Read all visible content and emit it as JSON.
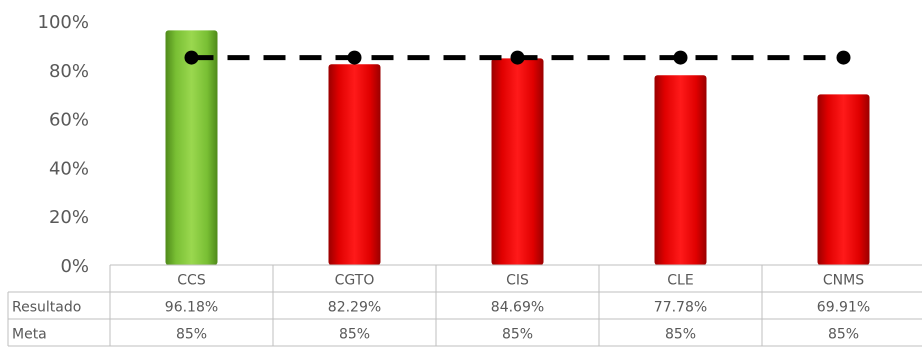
{
  "chart_data": {
    "type": "bar",
    "categories": [
      "CCS",
      "CGTO",
      "CIS",
      "CLE",
      "CNMS"
    ],
    "series": [
      {
        "name": "Resultado",
        "values": [
          96.18,
          82.29,
          84.69,
          77.78,
          69.91
        ],
        "labels": [
          "96.18%",
          "82.29%",
          "84.69%",
          "77.78%",
          "69.91%"
        ]
      },
      {
        "name": "Meta",
        "values": [
          85,
          85,
          85,
          85,
          85
        ],
        "labels": [
          "85%",
          "85%",
          "85%",
          "85%",
          "85%"
        ],
        "style": "dashed-line-with-markers"
      }
    ],
    "bar_colors": [
      "#7cc531",
      "#f00000",
      "#f00000",
      "#f00000",
      "#f00000"
    ],
    "meta_color": "#000000",
    "ylim": [
      0,
      100
    ],
    "yticks": [
      "0%",
      "20%",
      "40%",
      "60%",
      "80%",
      "100%"
    ],
    "table_row_labels": [
      "Resultado",
      "Meta"
    ],
    "title": "",
    "xlabel": "",
    "ylabel": ""
  }
}
